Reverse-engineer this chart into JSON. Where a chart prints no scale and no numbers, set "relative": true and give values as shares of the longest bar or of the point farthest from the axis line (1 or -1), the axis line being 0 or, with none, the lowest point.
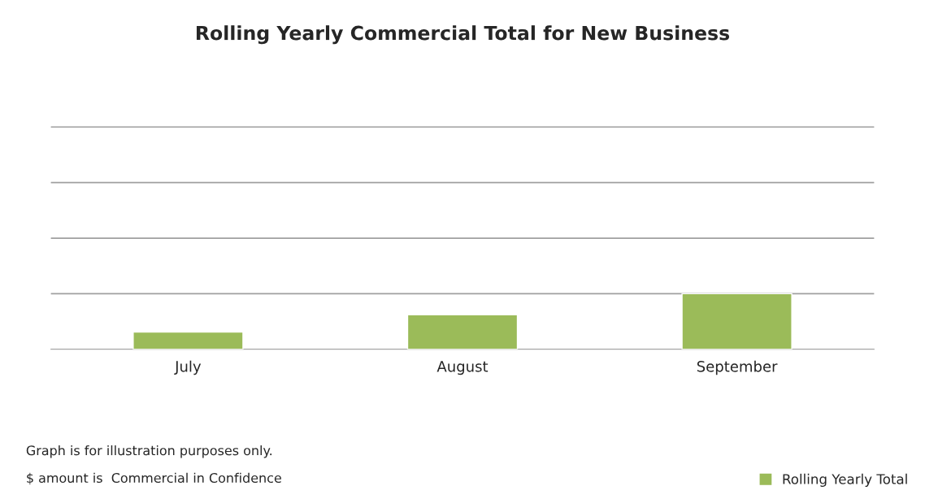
{
  "chart_data": {
    "type": "bar",
    "title": "Rolling Yearly Commercial Total for New Business",
    "categories": [
      "July",
      "August",
      "September"
    ],
    "series": [
      {
        "name": "Rolling Yearly Total",
        "color": "#9bbb59",
        "values": [
          0.31,
          0.62,
          1
        ]
      }
    ],
    "relative": true,
    "grid": "y",
    "legend": "bottom right",
    "annotations": [
      "Graph is for illustration purposes only.",
      "$ amount is  Commercial in Confidence"
    ]
  }
}
